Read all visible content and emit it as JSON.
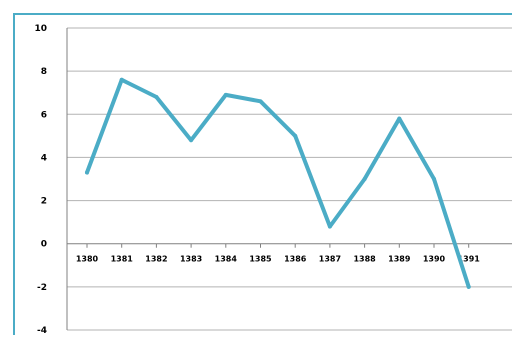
{
  "chart_data": {
    "type": "line",
    "title": "",
    "xlabel": "",
    "ylabel": "",
    "ylim": [
      -4,
      10
    ],
    "yticks": [
      -4,
      -2,
      0,
      2,
      4,
      6,
      8,
      10
    ],
    "grid": true,
    "legend": "none",
    "categories": [
      "1380",
      "1381",
      "1382",
      "1383",
      "1384",
      "1385",
      "1386",
      "1387",
      "1388",
      "1389",
      "1390",
      "1391"
    ],
    "series": [
      {
        "values": [
          3.3,
          7.6,
          6.8,
          4.8,
          6.9,
          6.6,
          5.0,
          0.8,
          3.0,
          5.8,
          3.0,
          -2.0
        ],
        "color": "#4bacc6"
      }
    ],
    "colors": {
      "frame": "#4bacc6",
      "grid": "#b3b3b3",
      "axis": "#808080",
      "text": "#000000"
    }
  }
}
